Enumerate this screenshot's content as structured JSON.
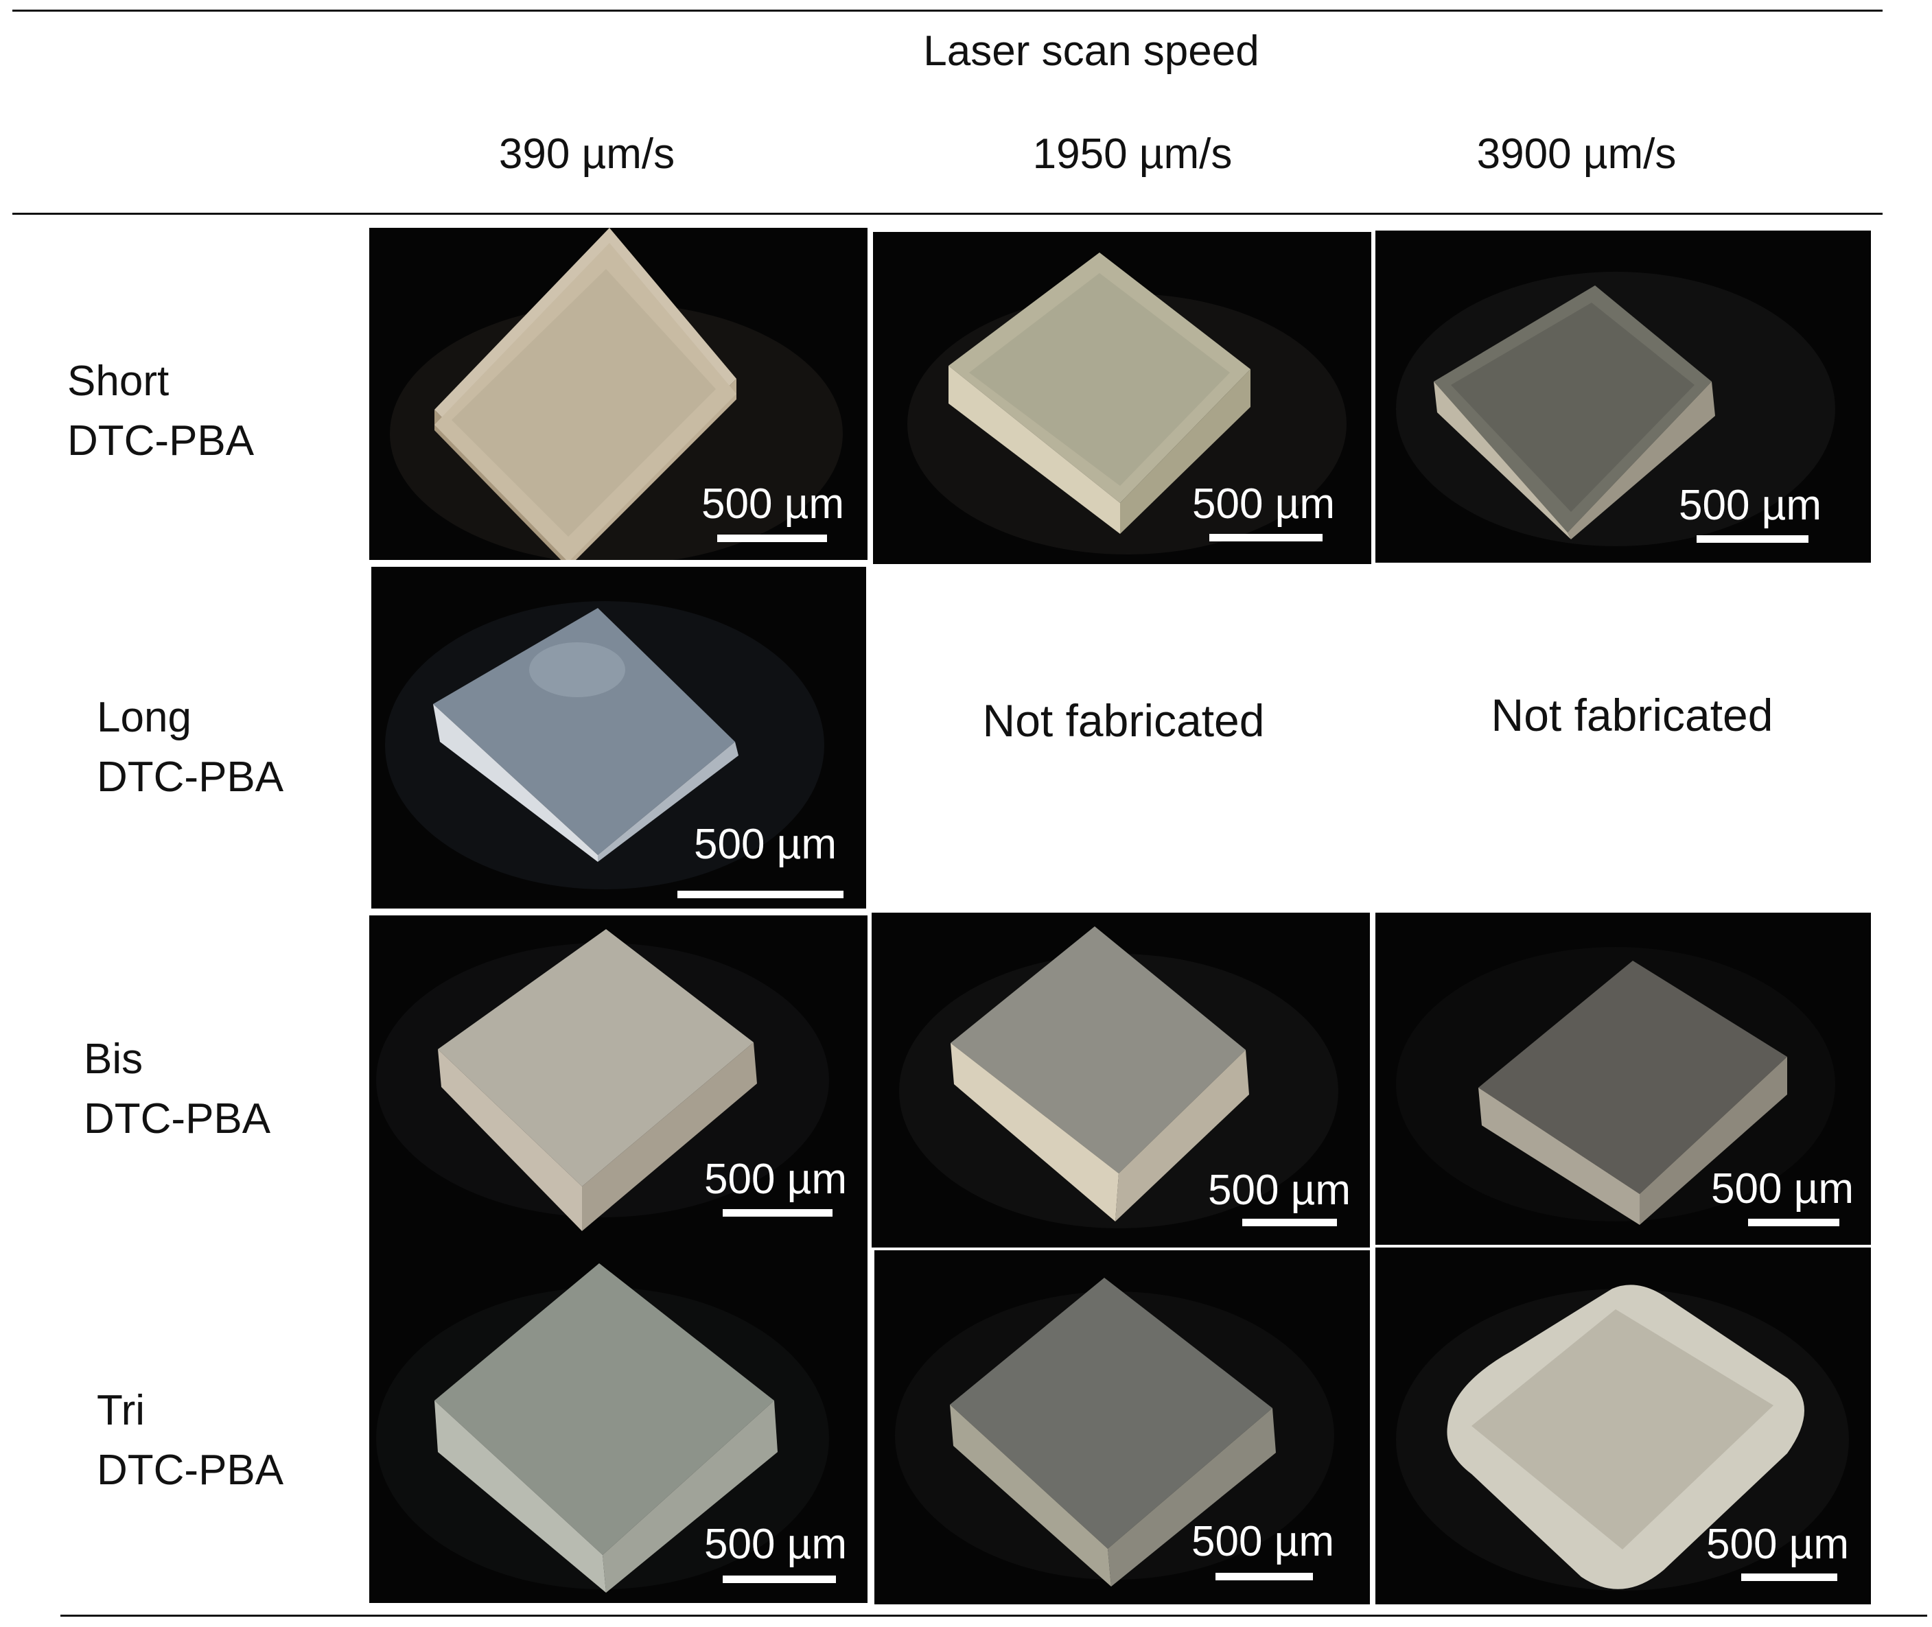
{
  "header": {
    "group_title": "Laser scan speed",
    "columns": [
      "390 µm/s",
      "1950 µm/s",
      "3900 µm/s"
    ]
  },
  "rows": [
    {
      "line1": "Short",
      "line2": "DTC-PBA"
    },
    {
      "line1": "Long",
      "line2": "DTC-PBA"
    },
    {
      "line1": "Bis",
      "line2": "DTC-PBA"
    },
    {
      "line1": "Tri",
      "line2": "DTC-PBA"
    }
  ],
  "scale_bar_label": "500 µm",
  "not_fabricated_label": "Not fabricated",
  "colors": {
    "photo_background": "#050505",
    "scale_bar": "#ffffff",
    "rule": "#111111"
  }
}
